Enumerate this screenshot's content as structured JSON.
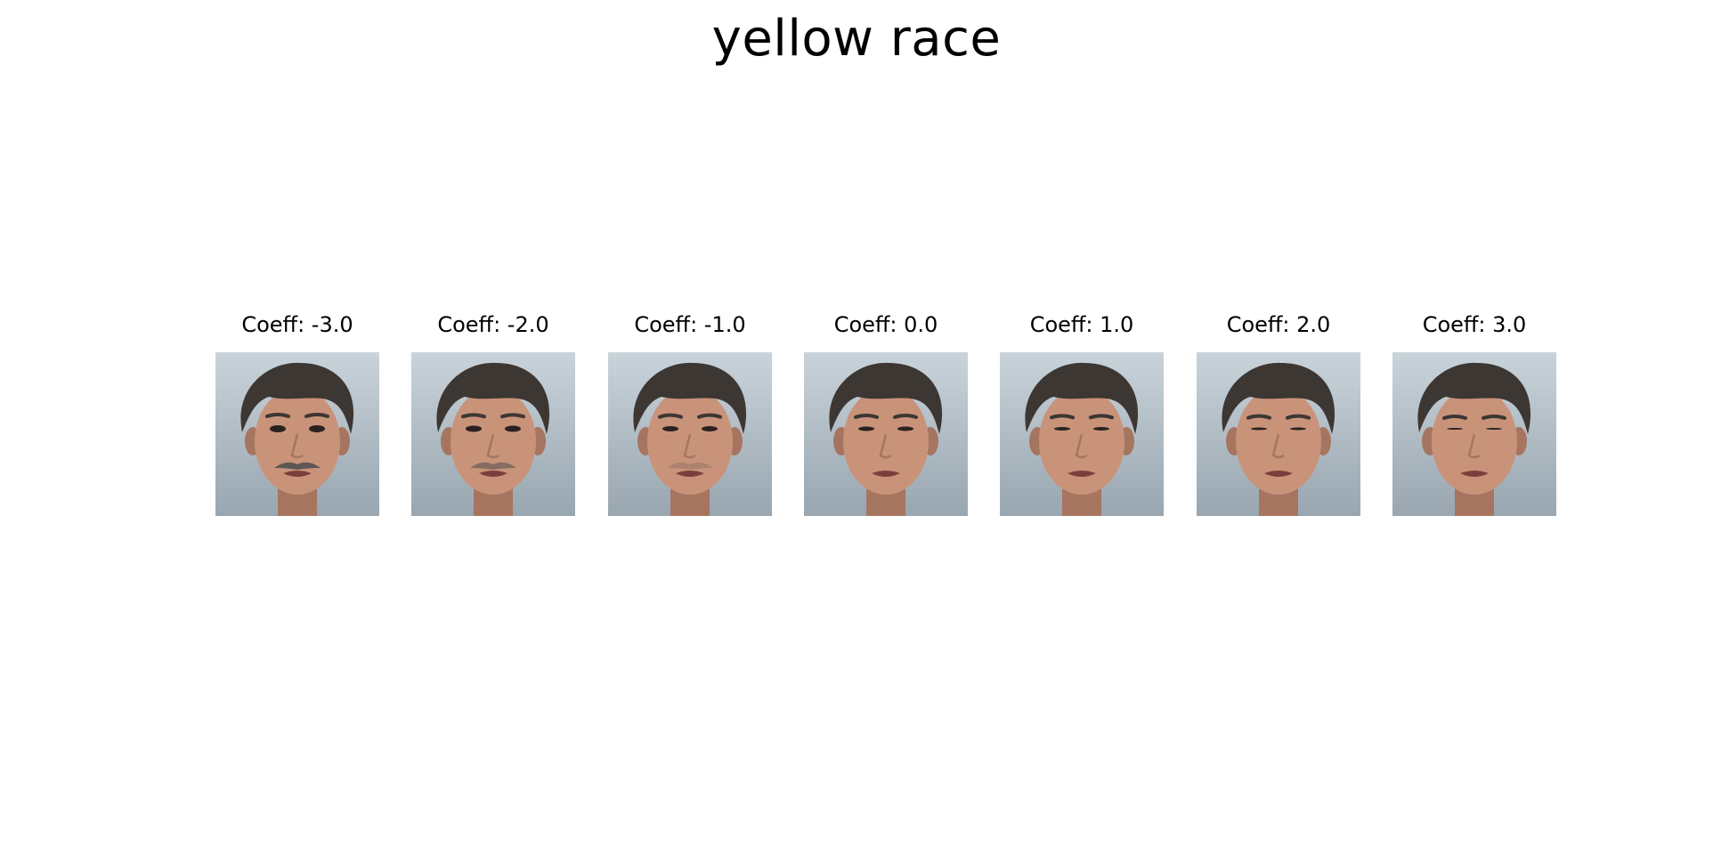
{
  "title": "yellow race",
  "panels": [
    {
      "label": "Coeff: -3.0",
      "coeff": -3.0
    },
    {
      "label": "Coeff: -2.0",
      "coeff": -2.0
    },
    {
      "label": "Coeff: -1.0",
      "coeff": -1.0
    },
    {
      "label": "Coeff: 0.0",
      "coeff": 0.0
    },
    {
      "label": "Coeff: 1.0",
      "coeff": 1.0
    },
    {
      "label": "Coeff: 2.0",
      "coeff": 2.0
    },
    {
      "label": "Coeff: 3.0",
      "coeff": 3.0
    }
  ],
  "colors": {
    "background_top": "#c9d3da",
    "background_bottom": "#99a6b0",
    "hair": "#3d3733",
    "skin": "#c9937a",
    "skin_shadow": "#a67560",
    "lips": "#7a3f3c",
    "mustache": "#5d5753",
    "eye": "#2a2220"
  }
}
